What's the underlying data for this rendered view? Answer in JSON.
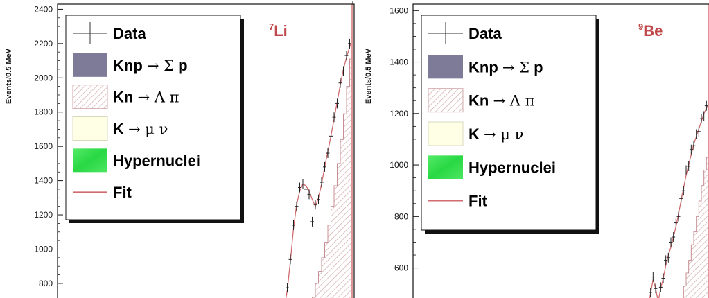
{
  "chart_data": [
    {
      "type": "line",
      "nucleus_mass": "7",
      "nucleus_symbol": "Li",
      "ylabel": "Events/0.5 MeV",
      "ylim": [
        650,
        2430
      ],
      "yticks": [
        800,
        1000,
        1200,
        1400,
        1600,
        1800,
        2000,
        2200,
        2400
      ],
      "legend": {
        "placement": "top-left",
        "entries": [
          {
            "text": "Data",
            "symbol": "",
            "tail": "",
            "style": "data"
          },
          {
            "text": "Knp ",
            "symbol": "→ Σ",
            "tail": " p",
            "style": "sigma",
            "color": "#7e7b98"
          },
          {
            "text": "Kn ",
            "symbol": "→ Λ π",
            "tail": "",
            "style": "lambda"
          },
          {
            "text": "K ",
            "symbol": "→ μ ν",
            "tail": "",
            "style": "munu",
            "color": "#ffffe6"
          },
          {
            "text": "Hypernuclei",
            "symbol": "",
            "tail": "",
            "style": "hyper",
            "color": "#33e24d"
          },
          {
            "text": "Fit",
            "symbol": "",
            "tail": "",
            "style": "fit",
            "color": "#d06b6f"
          }
        ]
      },
      "series": [
        {
          "name": "Fit",
          "color": "#d06b6f",
          "x": [
            0,
            1,
            2,
            3,
            4,
            5,
            6,
            7,
            8,
            9,
            10,
            11,
            12,
            13,
            14,
            15,
            16,
            17,
            18,
            19,
            20,
            21,
            22
          ],
          "values": [
            650,
            760,
            930,
            1120,
            1260,
            1340,
            1380,
            1370,
            1340,
            1290,
            1250,
            1300,
            1380,
            1480,
            1570,
            1660,
            1760,
            1860,
            1960,
            2050,
            2120,
            2180,
            2230
          ]
        },
        {
          "name": "Data",
          "color": "#222222",
          "x": [
            1,
            2,
            3,
            4,
            5,
            6,
            7,
            8,
            9,
            10,
            11,
            12,
            13,
            14,
            15,
            16,
            17,
            18,
            19,
            20,
            21,
            22
          ],
          "values": [
            775,
            940,
            1140,
            1250,
            1360,
            1380,
            1350,
            1320,
            1160,
            1260,
            1290,
            1390,
            1480,
            1560,
            1660,
            1770,
            1850,
            1970,
            2040,
            2130,
            2200,
            2420
          ]
        },
        {
          "name": "Kn → Λ π",
          "color": "#c78f93",
          "x": [
            8,
            9,
            10,
            11,
            12,
            13,
            14,
            15,
            16,
            17,
            18,
            19,
            20,
            21,
            22
          ],
          "values": [
            650,
            720,
            800,
            870,
            950,
            1040,
            1140,
            1250,
            1370,
            1500,
            1640,
            1790,
            1950,
            2110,
            2200
          ]
        }
      ]
    },
    {
      "type": "line",
      "nucleus_mass": "9",
      "nucleus_symbol": "Be",
      "ylabel": "Events/0.5 MeV",
      "ylim": [
        440,
        1625
      ],
      "yticks": [
        600,
        800,
        1000,
        1200,
        1400,
        1600
      ],
      "legend": {
        "placement": "top-left",
        "entries": [
          {
            "text": "Data",
            "symbol": "",
            "tail": "",
            "style": "data"
          },
          {
            "text": "Knp ",
            "symbol": "→ Σ",
            "tail": " p",
            "style": "sigma",
            "color": "#7e7b98"
          },
          {
            "text": "Kn ",
            "symbol": "→ Λ π",
            "tail": "",
            "style": "lambda"
          },
          {
            "text": "K ",
            "symbol": "→ μ ν",
            "tail": "",
            "style": "munu",
            "color": "#ffffe6"
          },
          {
            "text": "Hypernuclei",
            "symbol": "",
            "tail": "",
            "style": "hyper",
            "color": "#33e24d"
          },
          {
            "text": "Fit",
            "symbol": "",
            "tail": "",
            "style": "fit",
            "color": "#d06b6f"
          }
        ]
      },
      "series": [
        {
          "name": "Fit",
          "color": "#d06b6f",
          "x": [
            0,
            1,
            2,
            3,
            4,
            5,
            6,
            7,
            8,
            9,
            10,
            11,
            12,
            13,
            14,
            15,
            16,
            17,
            18,
            19,
            20,
            21,
            22,
            23,
            24
          ],
          "values": [
            440,
            500,
            555,
            520,
            470,
            520,
            560,
            610,
            650,
            680,
            720,
            760,
            810,
            860,
            910,
            960,
            1000,
            1040,
            1080,
            1110,
            1140,
            1170,
            1200,
            1220,
            1240
          ]
        },
        {
          "name": "Data",
          "color": "#222222",
          "x": [
            1,
            2,
            3,
            5,
            6,
            7,
            8,
            9,
            10,
            11,
            12,
            13,
            14,
            15,
            16,
            17,
            18,
            19,
            20,
            21,
            22,
            23,
            24
          ],
          "values": [
            505,
            565,
            520,
            525,
            560,
            630,
            640,
            700,
            720,
            775,
            800,
            870,
            900,
            980,
            995,
            1060,
            1075,
            1120,
            1130,
            1180,
            1190,
            1230,
            1230
          ]
        },
        {
          "name": "Kn → Λ π",
          "color": "#c78f93",
          "x": [
            12,
            13,
            14,
            15,
            16,
            17,
            18,
            19,
            20,
            21,
            22,
            23,
            24
          ],
          "values": [
            440,
            480,
            530,
            580,
            630,
            690,
            740,
            800,
            860,
            920,
            980,
            1030,
            1080
          ]
        }
      ]
    }
  ]
}
